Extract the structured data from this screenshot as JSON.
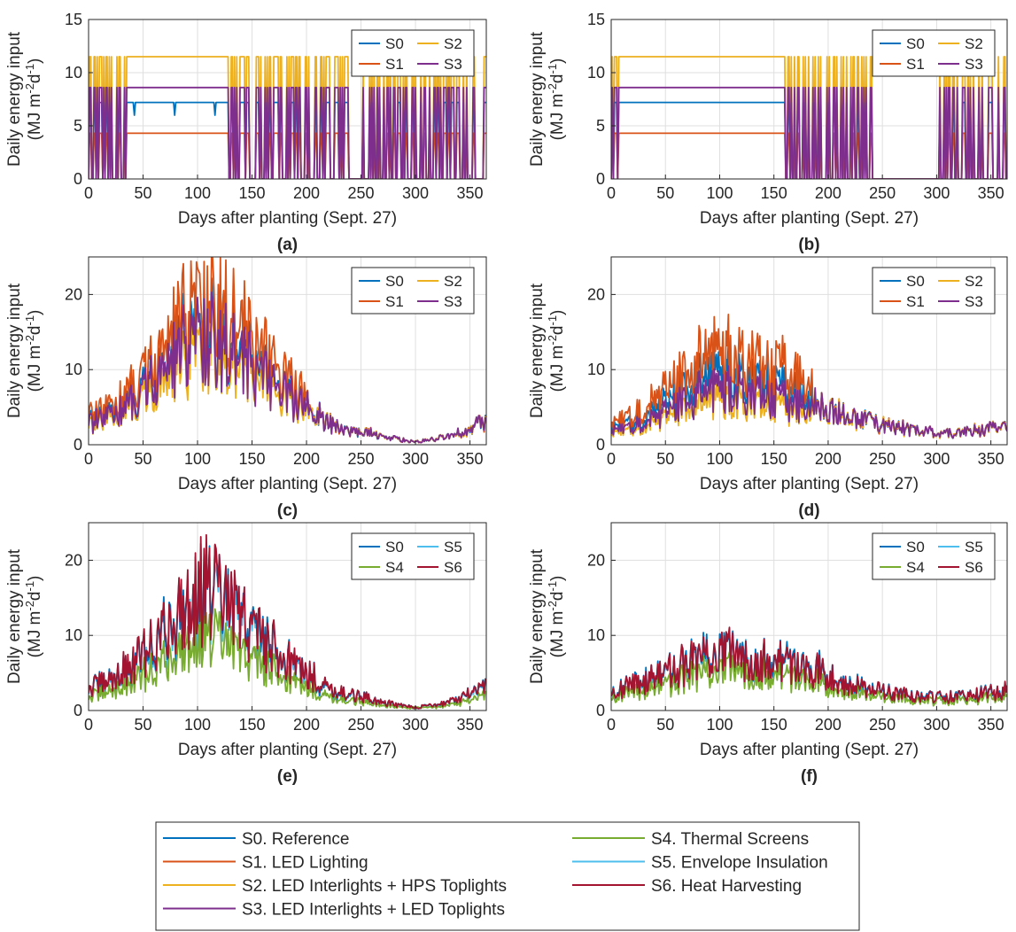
{
  "figure": {
    "palette": {
      "S0": "#0072BD",
      "S1": "#D95319",
      "S2": "#EDB120",
      "S3": "#7E2F8E",
      "S4": "#77AC30",
      "S5": "#4DBEEE",
      "S6": "#A2142F"
    },
    "common_legend": [
      {
        "key": "S0",
        "label": "S0. Reference"
      },
      {
        "key": "S1",
        "label": "S1. LED Lighting"
      },
      {
        "key": "S2",
        "label": "S2. LED Interlights + HPS Toplights"
      },
      {
        "key": "S3",
        "label": "S3. LED Interlights + LED Toplights"
      },
      {
        "key": "S4",
        "label": "S4. Thermal Screens"
      },
      {
        "key": "S5",
        "label": "S5. Envelope Insulation"
      },
      {
        "key": "S6",
        "label": "S6. Heat Harvesting"
      }
    ]
  },
  "chart_data": [
    {
      "panel": "(a)",
      "type": "line",
      "xlabel": "Days after planting (Sept. 27)",
      "ylabel": "Daily energy input",
      "ylabel_unit": "(MJ m-2 d-1)",
      "xlim": [
        0,
        365
      ],
      "ylim": [
        0,
        15
      ],
      "xticks": [
        0,
        50,
        100,
        150,
        200,
        250,
        300,
        350
      ],
      "yticks": [
        0,
        5,
        10,
        15
      ],
      "grid": true,
      "legend_position": "top-right",
      "legend": [
        "S0",
        "S1",
        "S2",
        "S3"
      ],
      "pattern": "lighting-on-off",
      "on_levels": {
        "S0": 7.2,
        "S1": 4.3,
        "S2": 11.5,
        "S3": 8.6
      },
      "continuous_on_days": [
        35,
        128
      ]
    },
    {
      "panel": "(b)",
      "type": "line",
      "xlabel": "Days after planting (Sept. 27)",
      "ylabel": "Daily energy input",
      "ylabel_unit": "(MJ m-2 d-1)",
      "xlim": [
        0,
        365
      ],
      "ylim": [
        0,
        15
      ],
      "xticks": [
        0,
        50,
        100,
        150,
        200,
        250,
        300,
        350
      ],
      "yticks": [
        0,
        5,
        10,
        15
      ],
      "grid": true,
      "legend_position": "top-right",
      "legend": [
        "S0",
        "S1",
        "S2",
        "S3"
      ],
      "pattern": "lighting-on-off",
      "on_levels": {
        "S0": 7.2,
        "S1": 4.3,
        "S2": 11.5,
        "S3": 8.6
      },
      "continuous_on_days": [
        7,
        160
      ]
    },
    {
      "panel": "(c)",
      "type": "line",
      "xlabel": "Days after planting (Sept. 27)",
      "ylabel": "Daily energy input",
      "ylabel_unit": "(MJ m-2 d-1)",
      "xlim": [
        0,
        365
      ],
      "ylim": [
        0,
        25
      ],
      "xticks": [
        0,
        50,
        100,
        150,
        200,
        250,
        300,
        350
      ],
      "yticks": [
        0,
        10,
        20
      ],
      "grid": true,
      "legend_position": "top-right",
      "legend": [
        "S0",
        "S1",
        "S2",
        "S3"
      ],
      "pattern": "heating",
      "envelope": [
        [
          0,
          3
        ],
        [
          20,
          4
        ],
        [
          40,
          6
        ],
        [
          60,
          9
        ],
        [
          80,
          12
        ],
        [
          95,
          15
        ],
        [
          110,
          16
        ],
        [
          125,
          14
        ],
        [
          140,
          12
        ],
        [
          160,
          10
        ],
        [
          180,
          7
        ],
        [
          200,
          5
        ],
        [
          220,
          3
        ],
        [
          240,
          2
        ],
        [
          260,
          1.5
        ],
        [
          280,
          0.8
        ],
        [
          300,
          0.4
        ],
        [
          320,
          0.8
        ],
        [
          340,
          1.5
        ],
        [
          365,
          3
        ]
      ],
      "series_scale": {
        "S0": 1.0,
        "S1": 1.25,
        "S2": 0.82,
        "S3": 0.95
      },
      "lighting_end_day": 200
    },
    {
      "panel": "(d)",
      "type": "line",
      "xlabel": "Days after planting (Sept. 27)",
      "ylabel": "Daily energy input",
      "ylabel_unit": "(MJ m-2 d-1)",
      "xlim": [
        0,
        365
      ],
      "ylim": [
        0,
        25
      ],
      "xticks": [
        0,
        50,
        100,
        150,
        200,
        250,
        300,
        350
      ],
      "yticks": [
        0,
        10,
        20
      ],
      "grid": true,
      "legend_position": "top-right",
      "legend": [
        "S0",
        "S1",
        "S2",
        "S3"
      ],
      "pattern": "heating",
      "envelope": [
        [
          0,
          2
        ],
        [
          20,
          3
        ],
        [
          40,
          4.5
        ],
        [
          60,
          6.5
        ],
        [
          80,
          8.5
        ],
        [
          100,
          9
        ],
        [
          120,
          9
        ],
        [
          140,
          8
        ],
        [
          160,
          7.5
        ],
        [
          180,
          6.5
        ],
        [
          200,
          5
        ],
        [
          220,
          3.5
        ],
        [
          240,
          3
        ],
        [
          260,
          2.5
        ],
        [
          280,
          2
        ],
        [
          300,
          1.5
        ],
        [
          320,
          1.5
        ],
        [
          340,
          2
        ],
        [
          365,
          2.5
        ]
      ],
      "series_scale": {
        "S0": 1.0,
        "S1": 1.3,
        "S2": 0.65,
        "S3": 0.8
      },
      "lighting_end_day": 185
    },
    {
      "panel": "(e)",
      "type": "line",
      "xlabel": "Days after planting (Sept. 27)",
      "ylabel": "Daily energy input",
      "ylabel_unit": "(MJ m-2 d-1)",
      "xlim": [
        0,
        365
      ],
      "ylim": [
        0,
        25
      ],
      "xticks": [
        0,
        50,
        100,
        150,
        200,
        250,
        300,
        350
      ],
      "yticks": [
        0,
        10,
        20
      ],
      "grid": true,
      "legend_position": "top-right",
      "legend": [
        "S0",
        "S4",
        "S5",
        "S6"
      ],
      "pattern": "heating",
      "envelope": [
        [
          0,
          3
        ],
        [
          20,
          4
        ],
        [
          40,
          6
        ],
        [
          60,
          9
        ],
        [
          80,
          12
        ],
        [
          95,
          15
        ],
        [
          110,
          16
        ],
        [
          125,
          14
        ],
        [
          140,
          12
        ],
        [
          160,
          10
        ],
        [
          180,
          7
        ],
        [
          200,
          5
        ],
        [
          220,
          3
        ],
        [
          240,
          2
        ],
        [
          260,
          1.5
        ],
        [
          280,
          0.8
        ],
        [
          300,
          0.4
        ],
        [
          320,
          0.8
        ],
        [
          340,
          1.5
        ],
        [
          365,
          3
        ]
      ],
      "series_scale": {
        "S0": 1.0,
        "S4": 0.62,
        "S5": 0.95,
        "S6": 1.02
      }
    },
    {
      "panel": "(f)",
      "type": "line",
      "xlabel": "Days after planting (Sept. 27)",
      "ylabel": "Daily energy input",
      "ylabel_unit": "(MJ m-2 d-1)",
      "xlim": [
        0,
        365
      ],
      "ylim": [
        0,
        25
      ],
      "xticks": [
        0,
        50,
        100,
        150,
        200,
        250,
        300,
        350
      ],
      "yticks": [
        0,
        10,
        20
      ],
      "grid": true,
      "legend_position": "top-right",
      "legend": [
        "S0",
        "S4",
        "S5",
        "S6"
      ],
      "pattern": "heating",
      "envelope": [
        [
          0,
          2.5
        ],
        [
          20,
          3.5
        ],
        [
          40,
          4.5
        ],
        [
          60,
          5.5
        ],
        [
          80,
          7
        ],
        [
          100,
          7.5
        ],
        [
          120,
          7.5
        ],
        [
          140,
          7
        ],
        [
          160,
          6.5
        ],
        [
          180,
          6
        ],
        [
          200,
          5
        ],
        [
          220,
          3.5
        ],
        [
          240,
          2.8
        ],
        [
          260,
          2.3
        ],
        [
          280,
          2
        ],
        [
          300,
          1.8
        ],
        [
          320,
          1.8
        ],
        [
          340,
          2.2
        ],
        [
          365,
          2.8
        ]
      ],
      "series_scale": {
        "S0": 1.0,
        "S4": 0.7,
        "S5": 0.97,
        "S6": 1.0
      }
    }
  ]
}
